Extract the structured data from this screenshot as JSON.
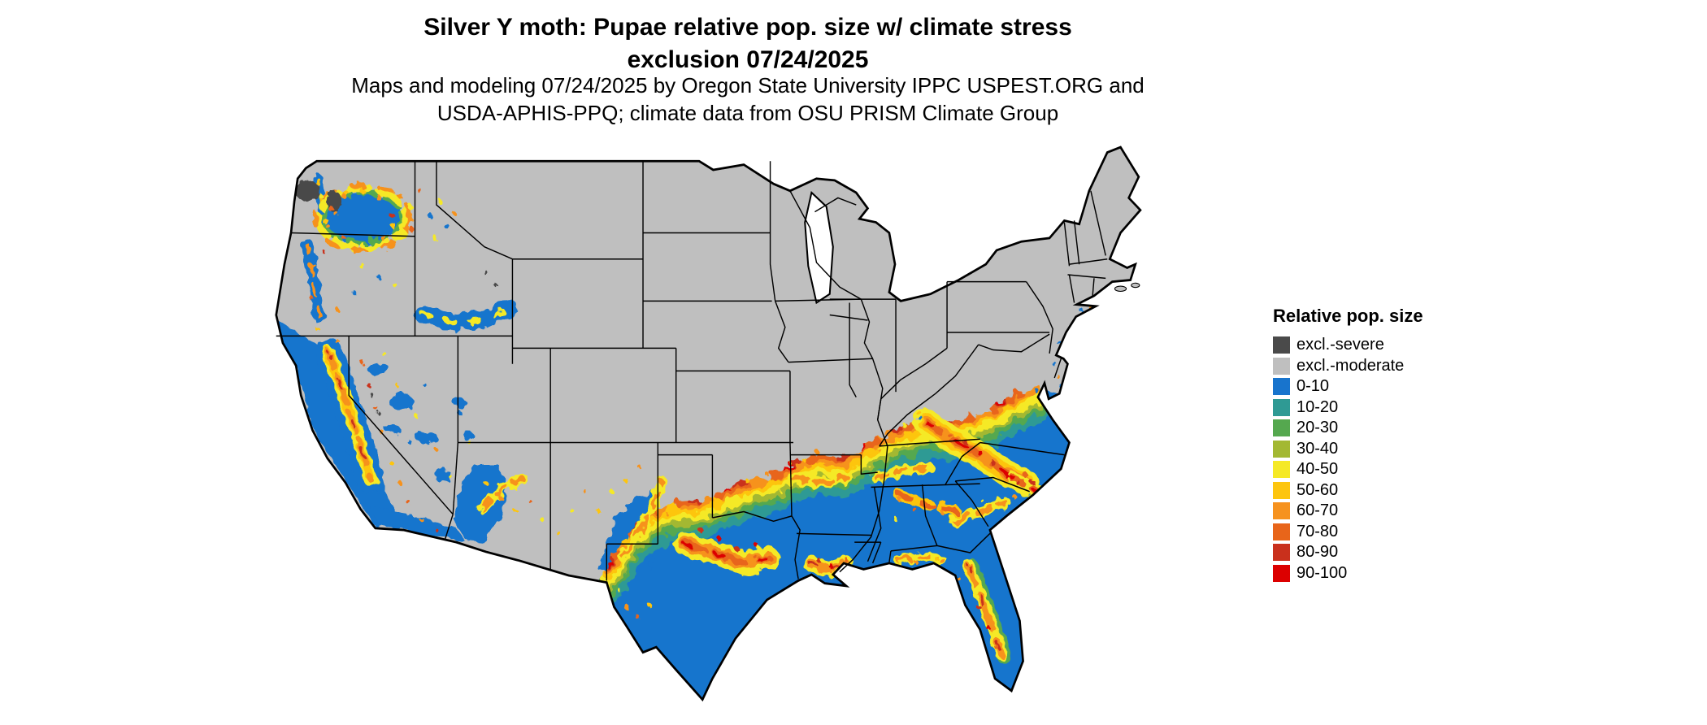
{
  "title": {
    "line1": "Silver Y moth: Pupae relative pop. size w/ climate stress",
    "line2": "exclusion 07/24/2025"
  },
  "subtitle": {
    "line1": "Maps and modeling 07/24/2025 by Oregon State University IPPC USPEST.ORG and",
    "line2": "USDA-APHIS-PPQ; climate data from OSU PRISM Climate Group"
  },
  "legend": {
    "title": "Relative pop. size",
    "items": [
      {
        "label": "excl.-severe",
        "color": "#4a4a4a"
      },
      {
        "label": "excl.-moderate",
        "color": "#bfbfbf"
      },
      {
        "label": "0-10",
        "color": "#1874cd"
      },
      {
        "label": "10-20",
        "color": "#2f9a94"
      },
      {
        "label": "20-30",
        "color": "#55a84f"
      },
      {
        "label": "30-40",
        "color": "#a3b832"
      },
      {
        "label": "40-50",
        "color": "#f5e926"
      },
      {
        "label": "50-60",
        "color": "#fdc50f"
      },
      {
        "label": "60-70",
        "color": "#f6921e"
      },
      {
        "label": "70-80",
        "color": "#e8651a"
      },
      {
        "label": "80-90",
        "color": "#c9301c"
      },
      {
        "label": "90-100",
        "color": "#dc0000"
      }
    ]
  },
  "map": {
    "background": "#ffffff",
    "water_color": "#ffffff",
    "border_color": "#000000"
  }
}
